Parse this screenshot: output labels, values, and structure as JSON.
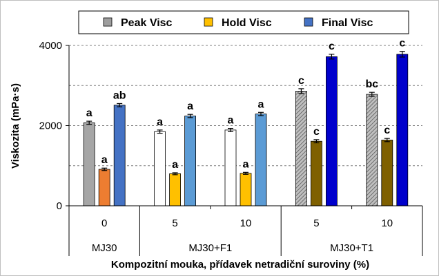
{
  "chart_data": {
    "type": "bar",
    "ylabel": "Viskozita (mPa·s)",
    "xlabel": "Kompozitní mouka, přídavek netradiční suroviny (%)",
    "ylim": [
      0,
      4000
    ],
    "yticks": [
      0,
      2000,
      4000
    ],
    "grid": "horizontal dashed",
    "legend_position": "top",
    "categories": [
      "0",
      "5",
      "10",
      "5",
      "10"
    ],
    "groups": [
      {
        "label": "MJ30",
        "categories": [
          "0"
        ]
      },
      {
        "label": "MJ30+F1",
        "categories": [
          "5",
          "10"
        ]
      },
      {
        "label": "MJ30+T1",
        "categories": [
          "5",
          "10"
        ]
      }
    ],
    "series": [
      {
        "name": "Peak Visc",
        "legend_color": "#9e9e9e",
        "values": [
          2070,
          1850,
          1890,
          2860,
          2780
        ],
        "errors": [
          40,
          40,
          40,
          60,
          50
        ],
        "labels": [
          "a",
          "a",
          "a",
          "c",
          "bc"
        ],
        "colors": [
          "#a6a6a6",
          "#ffffff",
          "#ffffff",
          "#8c8c8c",
          "#a6a6a6"
        ],
        "hatched": [
          false,
          false,
          false,
          true,
          true
        ]
      },
      {
        "name": "Hold Visc",
        "legend_color": "#ffc000",
        "values": [
          910,
          800,
          810,
          1610,
          1640
        ],
        "errors": [
          30,
          25,
          25,
          40,
          40
        ],
        "labels": [
          "a",
          "a",
          "a",
          "c",
          "c"
        ],
        "colors": [
          "#ed7d31",
          "#ffc000",
          "#ffc000",
          "#7f6000",
          "#7f6000"
        ],
        "hatched": [
          false,
          false,
          false,
          false,
          false
        ]
      },
      {
        "name": "Final Visc",
        "legend_color": "#4472c4",
        "values": [
          2510,
          2240,
          2290,
          3720,
          3780
        ],
        "errors": [
          40,
          40,
          40,
          60,
          70
        ],
        "labels": [
          "ab",
          "a",
          "a",
          "c",
          "c"
        ],
        "colors": [
          "#4472c4",
          "#5b9bd5",
          "#5b9bd5",
          "#0000cc",
          "#0000cc"
        ],
        "hatched": [
          false,
          false,
          false,
          false,
          false
        ]
      }
    ]
  }
}
